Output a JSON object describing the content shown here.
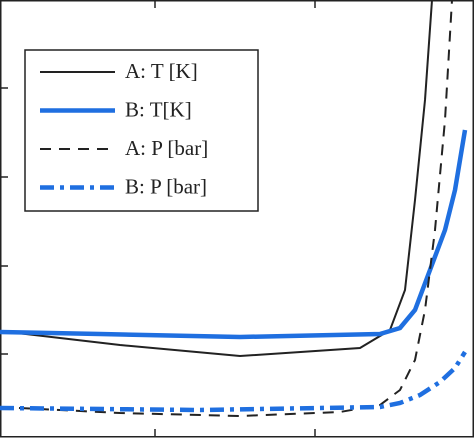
{
  "chart_data": {
    "type": "line",
    "xlim": [
      0,
      474
    ],
    "ylim": [
      0,
      444
    ],
    "xticks": [
      155,
      315
    ],
    "yticks": [
      90,
      178,
      267,
      356
    ],
    "legend": "upper left",
    "series": [
      {
        "name": "A: T [K]",
        "color": "#222222",
        "style": "solid",
        "width": 2,
        "x": [
          0,
          120,
          240,
          360,
          390,
          405,
          415,
          425,
          432
        ],
        "values": [
          113,
          99,
          88,
          96,
          114,
          154,
          244,
          344,
          444
        ]
      },
      {
        "name": "B: T[K]",
        "color": "#1f6fe0",
        "style": "solid",
        "width": 4.5,
        "x": [
          0,
          100,
          240,
          380,
          400,
          415,
          430,
          445,
          455,
          465
        ],
        "values": [
          112,
          110,
          107,
          110,
          116,
          134,
          174,
          214,
          254,
          314
        ]
      },
      {
        "name": "A: P [bar]",
        "color": "#222222",
        "style": "dashed",
        "width": 2,
        "x": [
          0,
          120,
          240,
          340,
          380,
          400,
          415,
          425,
          435,
          445,
          452
        ],
        "values": [
          37,
          31,
          28,
          32,
          39,
          54,
          84,
          134,
          214,
          324,
          444
        ]
      },
      {
        "name": "B: P [bar]",
        "color": "#1f6fe0",
        "style": "dashdot",
        "width": 4.5,
        "x": [
          0,
          200,
          380,
          400,
          420,
          440,
          455,
          465
        ],
        "values": [
          36,
          34,
          37,
          41,
          49,
          62,
          76,
          92
        ]
      }
    ]
  }
}
